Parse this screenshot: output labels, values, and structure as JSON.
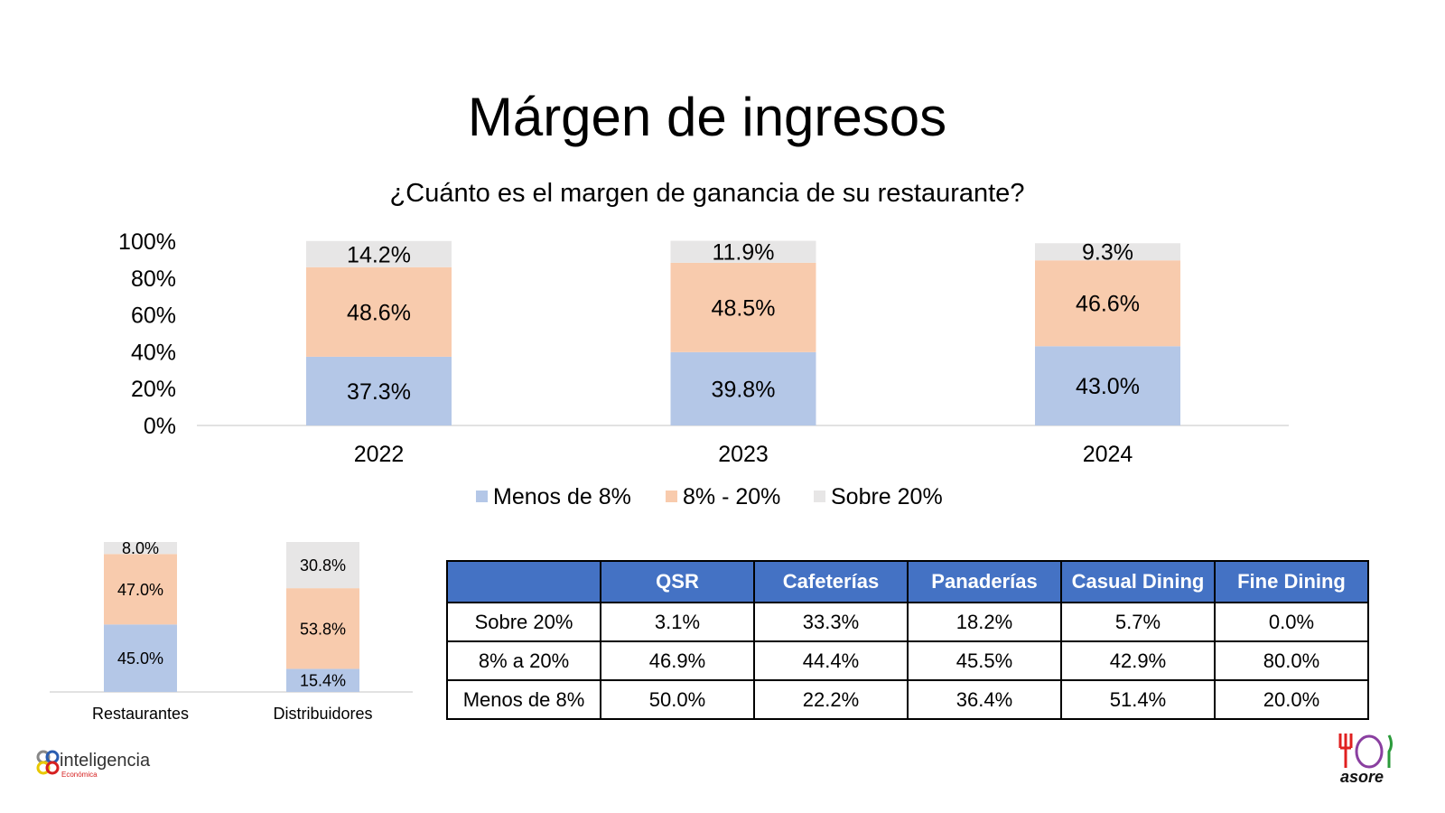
{
  "title": "Márgen de ingresos",
  "subtitle": "¿Cuánto es el margen de ganancia de su restaurante?",
  "colors": {
    "menos_8": "#b4c7e7",
    "entre_8_20": "#f8cbad",
    "sobre_20": "#e7e6e6",
    "table_header": "#4472c4"
  },
  "chart_data": [
    {
      "type": "bar",
      "stacked": true,
      "categories": [
        "2022",
        "2023",
        "2024"
      ],
      "series": [
        {
          "name": "Menos de 8%",
          "values": [
            37.3,
            39.8,
            43.0
          ],
          "labels": [
            "37.3%",
            "39.8%",
            "43.0%"
          ]
        },
        {
          "name": "8% - 20%",
          "values": [
            48.6,
            48.5,
            46.6
          ],
          "labels": [
            "48.6%",
            "48.5%",
            "46.6%"
          ]
        },
        {
          "name": "Sobre 20%",
          "values": [
            14.2,
            11.9,
            9.3
          ],
          "labels": [
            "14.2%",
            "11.9%",
            "9.3%"
          ]
        }
      ],
      "ylim": [
        0,
        100
      ],
      "yticks": [
        "0%",
        "20%",
        "40%",
        "60%",
        "80%",
        "100%"
      ],
      "legend": "bottom",
      "grid": false
    },
    {
      "type": "bar",
      "stacked": true,
      "categories": [
        "Restaurantes",
        "Distribuidores"
      ],
      "series": [
        {
          "values": [
            45.0,
            15.4
          ],
          "labels": [
            "45.0%",
            "15.4%"
          ]
        },
        {
          "values": [
            47.0,
            53.8
          ],
          "labels": [
            "47.0%",
            "53.8%"
          ]
        },
        {
          "values": [
            8.0,
            30.8
          ],
          "labels": [
            "8.0%",
            "30.8%"
          ]
        }
      ],
      "ylim": [
        0,
        100
      ],
      "legend": "none",
      "grid": false
    }
  ],
  "table": {
    "headers": [
      "",
      "QSR",
      "Cafeterías",
      "Panaderías",
      "Casual Dining",
      "Fine Dining"
    ],
    "rows": [
      [
        "Sobre 20%",
        "3.1%",
        "33.3%",
        "18.2%",
        "5.7%",
        "0.0%"
      ],
      [
        "8% a 20%",
        "46.9%",
        "44.4%",
        "45.5%",
        "42.9%",
        "80.0%"
      ],
      [
        "Menos de 8%",
        "50.0%",
        "22.2%",
        "36.4%",
        "51.4%",
        "20.0%"
      ]
    ]
  },
  "logos": {
    "left": "inteligencia Económica",
    "right": "asore"
  }
}
